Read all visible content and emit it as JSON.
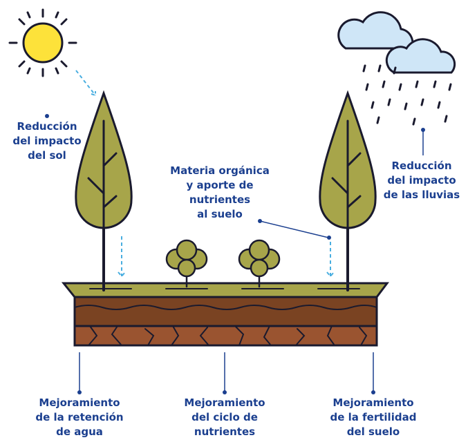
{
  "labels": {
    "sun": [
      "Reducción",
      "del impacto",
      "del sol"
    ],
    "rain": [
      "Reducción",
      "del impacto",
      "de las lluvias"
    ],
    "organic": [
      "Materia orgánica",
      "y aporte de",
      "nutrientes",
      "al suelo"
    ],
    "water": [
      "Mejoramiento",
      "de la retención",
      "de agua"
    ],
    "cycle": [
      "Mejoramiento",
      "del ciclo de",
      "nutrientes"
    ],
    "fertility": [
      "Mejoramiento",
      "de la fertilidad",
      "del suelo"
    ]
  }
}
